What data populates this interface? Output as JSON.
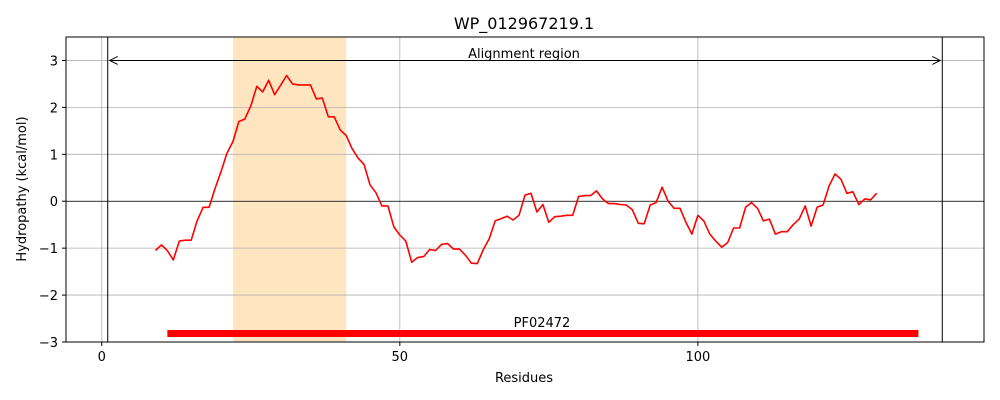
{
  "chart_data": {
    "type": "line",
    "title": "WP_012967219.1",
    "xlabel": "Residues",
    "ylabel": "Hydropathy (kcal/mol)",
    "xlim": [
      -6,
      148
    ],
    "ylim": [
      -3,
      3.5
    ],
    "xticks": [
      0,
      50,
      100
    ],
    "yticks": [
      -3,
      -2,
      -1,
      0,
      1,
      2,
      3
    ],
    "ytick_labels": [
      "−3",
      "−2",
      "−1",
      "0",
      "1",
      "2",
      "3"
    ],
    "grid": true,
    "colors": {
      "line": "#ff0000",
      "highlight": "#ffe6c0",
      "domain_bar": "#ff0000",
      "grid": "#b0b0b0"
    },
    "highlight_region": [
      22,
      41
    ],
    "alignment_region": {
      "label": "Alignment region",
      "start": 1,
      "end": 141,
      "y": 3.0
    },
    "vertical_lines": [
      1,
      141
    ],
    "domain": {
      "label": "PF02472",
      "start": 11,
      "end": 137,
      "y": -2.82
    },
    "series": [
      {
        "x": [
          9,
          10,
          11,
          12,
          13,
          14,
          15,
          16,
          17,
          18,
          19,
          20,
          21,
          22,
          23,
          24,
          25,
          26,
          27,
          28,
          29,
          30,
          31,
          32,
          33,
          34,
          35,
          36,
          37,
          38,
          39,
          40,
          41,
          42,
          43,
          44,
          45,
          46,
          47,
          48,
          49,
          50,
          51,
          52,
          53,
          54,
          55,
          56,
          57,
          58,
          59,
          60,
          61,
          62,
          63,
          64,
          65,
          66,
          67,
          68,
          69,
          70,
          71,
          72,
          73,
          74,
          75,
          76,
          77,
          78,
          79,
          80,
          81,
          82,
          83,
          84,
          85,
          86,
          87,
          88,
          89,
          90,
          91,
          92,
          93,
          94,
          95,
          96,
          97,
          98,
          99,
          100,
          101,
          102,
          103,
          104,
          105,
          106,
          107,
          108,
          109,
          110,
          111,
          112,
          113,
          114,
          115,
          116,
          117,
          118,
          119,
          120,
          121,
          122,
          123,
          124,
          125,
          126,
          127,
          128,
          129,
          130
        ],
        "y": [
          -1.05,
          -0.93,
          -1.05,
          -1.25,
          -0.85,
          -0.83,
          -0.83,
          -0.42,
          -0.13,
          -0.13,
          0.27,
          0.63,
          1.02,
          1.27,
          1.7,
          1.75,
          2.03,
          2.45,
          2.33,
          2.58,
          2.27,
          2.47,
          2.68,
          2.5,
          2.48,
          2.48,
          2.48,
          2.18,
          2.2,
          1.8,
          1.8,
          1.52,
          1.4,
          1.12,
          0.92,
          0.78,
          0.35,
          0.18,
          -0.1,
          -0.1,
          -0.55,
          -0.72,
          -0.85,
          -1.3,
          -1.2,
          -1.18,
          -1.03,
          -1.05,
          -0.92,
          -0.9,
          -1.02,
          -1.02,
          -1.15,
          -1.32,
          -1.33,
          -1.03,
          -0.8,
          -0.42,
          -0.37,
          -0.32,
          -0.4,
          -0.3,
          0.13,
          0.17,
          -0.23,
          -0.07,
          -0.45,
          -0.33,
          -0.32,
          -0.3,
          -0.3,
          0.1,
          0.12,
          0.12,
          0.22,
          0.05,
          -0.05,
          -0.05,
          -0.07,
          -0.08,
          -0.18,
          -0.47,
          -0.48,
          -0.08,
          -0.03,
          0.3,
          0.0,
          -0.15,
          -0.15,
          -0.45,
          -0.7,
          -0.3,
          -0.42,
          -0.7,
          -0.85,
          -0.98,
          -0.88,
          -0.57,
          -0.57,
          -0.13,
          -0.03,
          -0.15,
          -0.42,
          -0.38,
          -0.7,
          -0.65,
          -0.65,
          -0.5,
          -0.38,
          -0.1,
          -0.53,
          -0.13,
          -0.08,
          0.32,
          0.58,
          0.47,
          0.17,
          0.2,
          -0.07,
          0.05,
          0.03,
          0.17
        ]
      }
    ]
  }
}
